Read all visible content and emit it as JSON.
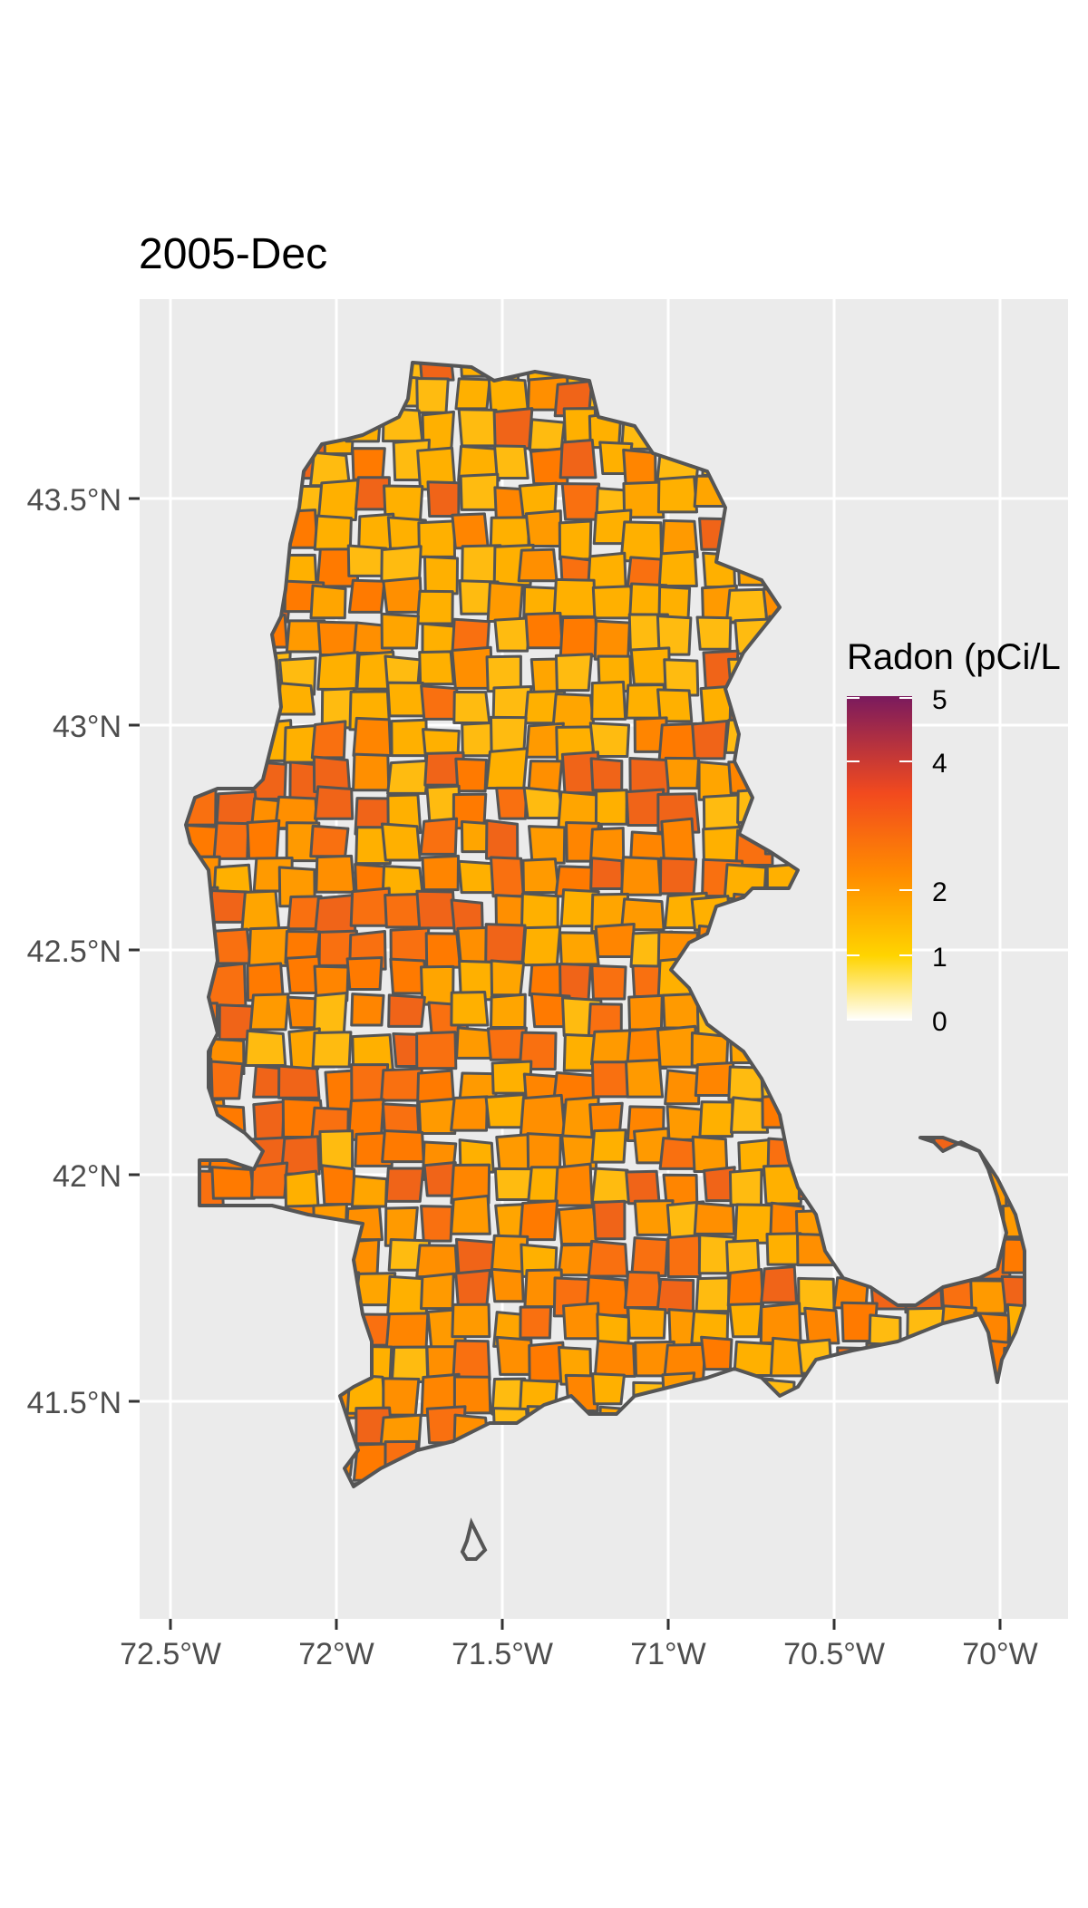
{
  "title": "2005-Dec",
  "colors": {
    "panel_background": "#ebebeb",
    "grid_line": "#ffffff",
    "border": "#555555",
    "scale": [
      "#ffffff",
      "#ffd400",
      "#ff8c00",
      "#f24a1e",
      "#7a1a5e"
    ]
  },
  "axes": {
    "x_ticks": [
      "72.5°W",
      "72°W",
      "71.5°W",
      "71°W",
      "70.5°W",
      "70°W"
    ],
    "y_ticks": [
      "43.5°N",
      "43°N",
      "42.5°N",
      "42°N",
      "41.5°N"
    ]
  },
  "legend": {
    "title": "Radon (pCi/L",
    "ticks": [
      "5",
      "4",
      "2",
      "1",
      "0"
    ]
  }
}
